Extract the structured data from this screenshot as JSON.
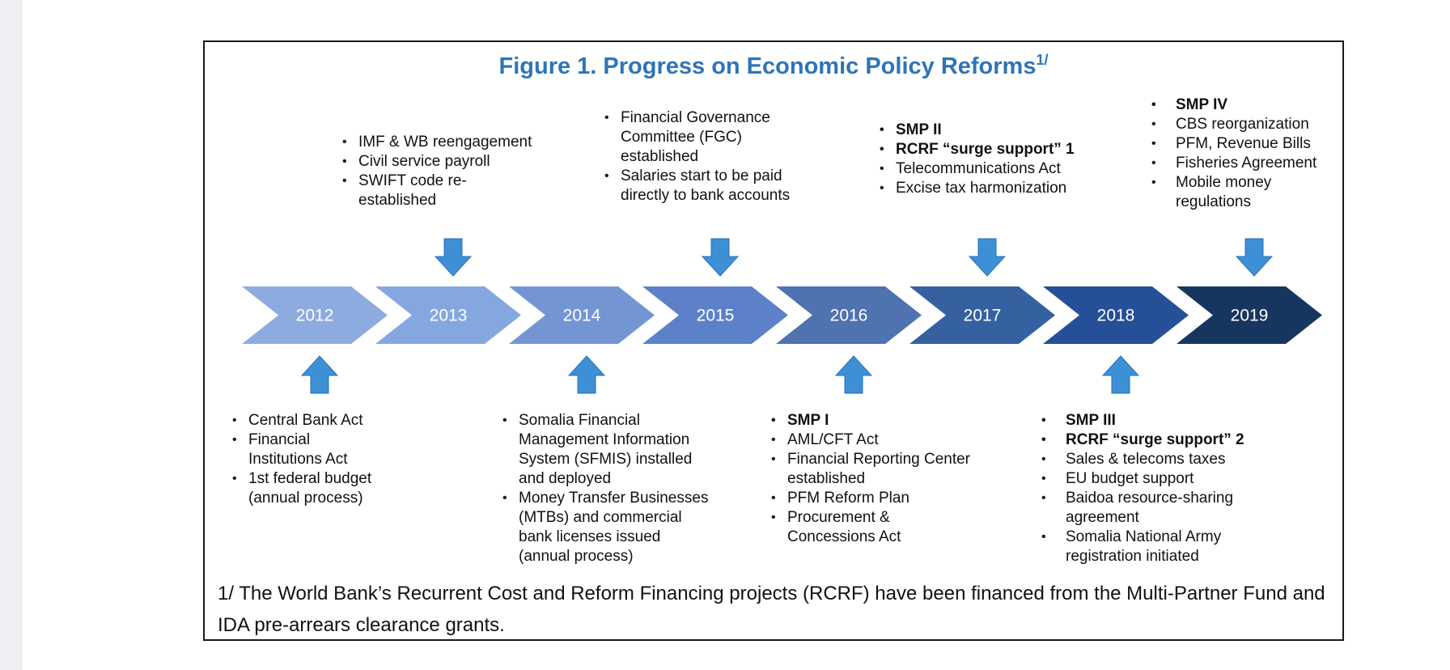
{
  "figure": {
    "title": "Figure 1. Progress on Economic Policy Reforms",
    "title_sup": "1/",
    "footnote": "1/ The World Bank’s Recurrent Cost and Reform Financing projects (RCRF) have been financed from the Multi-Partner Fund and IDA pre-arrears clearance grants."
  },
  "timeline": {
    "years": [
      "2012",
      "2013",
      "2014",
      "2015",
      "2016",
      "2017",
      "2018",
      "2019"
    ],
    "colors": [
      "#8eabe0",
      "#84a7df",
      "#7495d3",
      "#5d81c9",
      "#4f72b0",
      "#3561a0",
      "#254f96",
      "#16365f"
    ]
  },
  "top_boxes": [
    {
      "year": "2013",
      "items": [
        {
          "text": "IMF & WB reengagement",
          "bold": false
        },
        {
          "text": "Civil service payroll",
          "bold": false
        },
        {
          "text": "SWIFT code re-established",
          "bold": false
        }
      ]
    },
    {
      "year": "2015",
      "items": [
        {
          "text": "Financial Governance Committee (FGC) established",
          "bold": false
        },
        {
          "text": "Salaries start to be paid directly to bank accounts",
          "bold": false
        }
      ]
    },
    {
      "year": "2017",
      "items": [
        {
          "text": "SMP II",
          "bold": true
        },
        {
          "text": "RCRF “surge support” 1",
          "bold": true
        },
        {
          "text": "Telecommunications Act",
          "bold": false
        },
        {
          "text": "Excise tax harmonization",
          "bold": false
        }
      ]
    },
    {
      "year": "2019",
      "items": [
        {
          "text": "SMP IV",
          "bold": true
        },
        {
          "text": "CBS reorganization",
          "bold": false
        },
        {
          "text": "PFM, Revenue Bills",
          "bold": false
        },
        {
          "text": "Fisheries Agreement",
          "bold": false
        },
        {
          "text": "Mobile money regulations",
          "bold": false
        }
      ]
    }
  ],
  "bottom_boxes": [
    {
      "year": "2012",
      "items": [
        {
          "text": "Central Bank Act",
          "bold": false
        },
        {
          "text": "Financial Institutions Act",
          "bold": false
        },
        {
          "text": "1st federal budget (annual process)",
          "bold": false
        }
      ]
    },
    {
      "year": "2014",
      "items": [
        {
          "text": "Somalia Financial Management Information System (SFMIS) installed and deployed",
          "bold": false
        },
        {
          "text": "Money Transfer Businesses (MTBs) and commercial bank licenses issued (annual process)",
          "bold": false
        }
      ]
    },
    {
      "year": "2016",
      "items": [
        {
          "text": "SMP I",
          "bold": true
        },
        {
          "text": "AML/CFT Act",
          "bold": false
        },
        {
          "text": "Financial Reporting Center established",
          "bold": false
        },
        {
          "text": "PFM Reform Plan",
          "bold": false
        },
        {
          "text": "Procurement & Concessions Act",
          "bold": false
        }
      ]
    },
    {
      "year": "2018",
      "items": [
        {
          "text": "SMP III",
          "bold": true
        },
        {
          "text": "RCRF “surge support” 2",
          "bold": true
        },
        {
          "text": "Sales & telecoms taxes",
          "bold": false
        },
        {
          "text": "EU budget support",
          "bold": false
        },
        {
          "text": "Baidoa resource-sharing agreement",
          "bold": false
        },
        {
          "text": "Somalia National Army registration initiated",
          "bold": false
        }
      ]
    }
  ]
}
